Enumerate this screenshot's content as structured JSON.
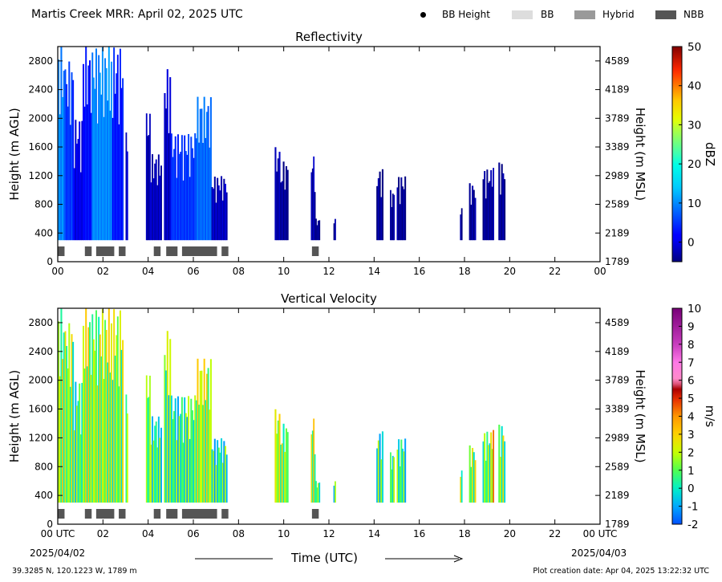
{
  "header": {
    "title": "Martis Creek MRR:  April 02, 2025 UTC",
    "legend": [
      {
        "label": "BB Height",
        "kind": "dot",
        "color": "#000000"
      },
      {
        "label": "BB",
        "kind": "box",
        "color": "#dddddd"
      },
      {
        "label": "Hybrid",
        "kind": "box",
        "color": "#999999"
      },
      {
        "label": "NBB",
        "kind": "box",
        "color": "#555555"
      }
    ]
  },
  "footer": {
    "location": "39.3285 N, 120.1223 W, 1789 m",
    "created": "Plot creation date: Apr 04, 2025 13:22:32 UTC",
    "time_label": "Time (UTC)",
    "start_date": "2025/04/02",
    "end_date": "2025/04/03"
  },
  "chart_data": [
    {
      "type": "heatmap",
      "title": "Reflectivity",
      "ylabel": "Height (m AGL)",
      "ylabel_right": "Height (m MSL)",
      "colorbar_label": "dBZ",
      "colorbar_ticks": [
        "0",
        "10",
        "20",
        "30",
        "40",
        "50"
      ],
      "colorbar_range": [
        -5,
        50
      ],
      "colormap": "jet",
      "xlim": [
        0,
        24
      ],
      "ylim": [
        0,
        3000
      ],
      "x_ticks": [
        "00",
        "02",
        "04",
        "06",
        "08",
        "10",
        "12",
        "14",
        "16",
        "18",
        "20",
        "22",
        "00"
      ],
      "y_ticks": [
        "0",
        "400",
        "800",
        "1200",
        "1600",
        "2000",
        "2400",
        "2800"
      ],
      "y_ticks_right": [
        "1789",
        "2189",
        "2589",
        "2989",
        "3389",
        "3789",
        "4189",
        "4589"
      ],
      "echo_segments": [
        {
          "start": 0.0,
          "end": 0.3,
          "top": 3000,
          "value": 10
        },
        {
          "start": 0.3,
          "end": 0.7,
          "top": 2800,
          "value": 5
        },
        {
          "start": 0.7,
          "end": 1.1,
          "top": 2000,
          "value": 0
        },
        {
          "start": 1.1,
          "end": 1.5,
          "top": 3000,
          "value": 2
        },
        {
          "start": 1.5,
          "end": 2.4,
          "top": 3000,
          "value": 10
        },
        {
          "start": 2.4,
          "end": 2.9,
          "top": 3000,
          "value": 3
        },
        {
          "start": 3.0,
          "end": 3.1,
          "top": 2000,
          "value": -2
        },
        {
          "start": 3.9,
          "end": 4.1,
          "top": 2100,
          "value": -3
        },
        {
          "start": 4.1,
          "end": 4.6,
          "top": 1500,
          "value": -2
        },
        {
          "start": 4.7,
          "end": 5.0,
          "top": 2700,
          "value": -2
        },
        {
          "start": 5.0,
          "end": 6.1,
          "top": 1800,
          "value": 5
        },
        {
          "start": 6.1,
          "end": 6.8,
          "top": 2300,
          "value": 8
        },
        {
          "start": 6.8,
          "end": 7.5,
          "top": 1200,
          "value": -2
        },
        {
          "start": 9.6,
          "end": 9.9,
          "top": 1600,
          "value": -3
        },
        {
          "start": 9.9,
          "end": 10.2,
          "top": 1400,
          "value": -4
        },
        {
          "start": 11.2,
          "end": 11.4,
          "top": 1500,
          "value": -3
        },
        {
          "start": 11.4,
          "end": 11.6,
          "top": 600,
          "value": -4
        },
        {
          "start": 12.2,
          "end": 12.3,
          "top": 600,
          "value": -4
        },
        {
          "start": 14.1,
          "end": 14.4,
          "top": 1300,
          "value": -4
        },
        {
          "start": 14.7,
          "end": 14.9,
          "top": 1000,
          "value": -4
        },
        {
          "start": 15.0,
          "end": 15.4,
          "top": 1200,
          "value": -4
        },
        {
          "start": 17.8,
          "end": 17.9,
          "top": 800,
          "value": -4
        },
        {
          "start": 18.2,
          "end": 18.5,
          "top": 1100,
          "value": -4
        },
        {
          "start": 18.8,
          "end": 19.2,
          "top": 1300,
          "value": -4
        },
        {
          "start": 19.2,
          "end": 19.3,
          "top": 1400,
          "value": -4
        },
        {
          "start": 19.5,
          "end": 19.8,
          "top": 1400,
          "value": -4
        }
      ]
    },
    {
      "type": "heatmap",
      "title": "Vertical Velocity",
      "ylabel": "Height (m AGL)",
      "ylabel_right": "Height (m MSL)",
      "colorbar_label": "m/s",
      "colorbar_ticks": [
        "-2",
        "-1",
        "0",
        "1",
        "2",
        "3",
        "4",
        "5",
        "6",
        "7",
        "8",
        "9",
        "10"
      ],
      "colorbar_range": [
        -2,
        10
      ],
      "colormap": "velocity",
      "xlim": [
        0,
        24
      ],
      "ylim": [
        0,
        3000
      ],
      "x_ticks": [
        "00 UTC",
        "02",
        "04",
        "06",
        "08",
        "10",
        "12",
        "14",
        "16",
        "18",
        "20",
        "22",
        "00 UTC"
      ],
      "y_ticks": [
        "0",
        "400",
        "800",
        "1200",
        "1600",
        "2000",
        "2400",
        "2800"
      ],
      "y_ticks_right": [
        "1789",
        "2189",
        "2589",
        "2989",
        "3389",
        "3789",
        "4189",
        "4589"
      ],
      "echo_segments": [
        {
          "start": 0.0,
          "end": 0.3,
          "top": 3000,
          "value": 1.6
        },
        {
          "start": 0.3,
          "end": 0.7,
          "top": 2800,
          "value": 1.3
        },
        {
          "start": 0.7,
          "end": 1.1,
          "top": 2000,
          "value": 0.8
        },
        {
          "start": 1.1,
          "end": 1.5,
          "top": 3000,
          "value": 1.8
        },
        {
          "start": 1.5,
          "end": 2.4,
          "top": 3000,
          "value": 1.6
        },
        {
          "start": 2.4,
          "end": 2.9,
          "top": 3000,
          "value": 1.2
        },
        {
          "start": 3.0,
          "end": 3.1,
          "top": 2000,
          "value": 0.9
        },
        {
          "start": 3.9,
          "end": 4.1,
          "top": 2100,
          "value": 0.8
        },
        {
          "start": 4.1,
          "end": 4.6,
          "top": 1500,
          "value": 0.6
        },
        {
          "start": 4.7,
          "end": 5.0,
          "top": 2700,
          "value": 0.8
        },
        {
          "start": 5.0,
          "end": 6.1,
          "top": 1800,
          "value": 0.5
        },
        {
          "start": 6.1,
          "end": 6.8,
          "top": 2300,
          "value": 1.7
        },
        {
          "start": 6.8,
          "end": 7.5,
          "top": 1200,
          "value": 0.4
        },
        {
          "start": 9.6,
          "end": 9.9,
          "top": 1600,
          "value": 1.8
        },
        {
          "start": 9.9,
          "end": 10.2,
          "top": 1400,
          "value": 1.4
        },
        {
          "start": 11.2,
          "end": 11.4,
          "top": 1500,
          "value": 1.7
        },
        {
          "start": 11.4,
          "end": 11.6,
          "top": 600,
          "value": 1.0
        },
        {
          "start": 12.2,
          "end": 12.3,
          "top": 600,
          "value": 0.5
        },
        {
          "start": 14.1,
          "end": 14.4,
          "top": 1300,
          "value": 0.5
        },
        {
          "start": 14.7,
          "end": 14.9,
          "top": 1000,
          "value": 0.6
        },
        {
          "start": 15.0,
          "end": 15.4,
          "top": 1200,
          "value": 0.5
        },
        {
          "start": 17.8,
          "end": 17.9,
          "top": 800,
          "value": 1.5
        },
        {
          "start": 18.2,
          "end": 18.5,
          "top": 1100,
          "value": 1.3
        },
        {
          "start": 18.8,
          "end": 19.2,
          "top": 1300,
          "value": 1.0
        },
        {
          "start": 19.2,
          "end": 19.3,
          "top": 1400,
          "value": 2.8
        },
        {
          "start": 19.5,
          "end": 19.8,
          "top": 1400,
          "value": 1.2
        }
      ]
    }
  ],
  "bright_band": {
    "kind": "NBB",
    "periods": [
      {
        "start": 0.0,
        "end": 0.3
      },
      {
        "start": 1.2,
        "end": 1.5
      },
      {
        "start": 1.7,
        "end": 2.5
      },
      {
        "start": 2.7,
        "end": 3.0
      },
      {
        "start": 4.25,
        "end": 4.55
      },
      {
        "start": 4.8,
        "end": 5.3
      },
      {
        "start": 5.5,
        "end": 7.05
      },
      {
        "start": 7.25,
        "end": 7.55
      },
      {
        "start": 11.25,
        "end": 11.55
      }
    ]
  }
}
